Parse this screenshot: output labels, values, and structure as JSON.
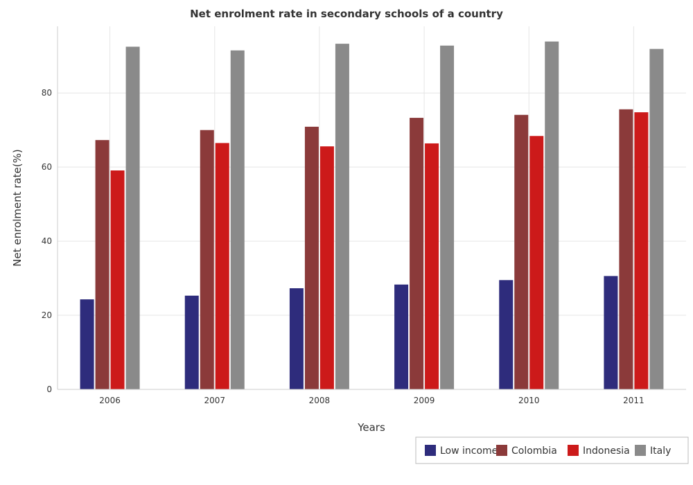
{
  "chart_data": {
    "type": "bar",
    "title": "Net enrolment rate in secondary schools of a country",
    "xlabel": "Years",
    "ylabel": "Net enrolment rate(%)",
    "categories": [
      "2006",
      "2007",
      "2008",
      "2009",
      "2010",
      "2011"
    ],
    "ylim": [
      0,
      98
    ],
    "yticks": [
      0,
      20,
      40,
      60,
      80
    ],
    "grid": true,
    "legend_position": "bottom-right",
    "series": [
      {
        "name": "Low income",
        "color": "#2e2c7c",
        "values": [
          24.3,
          25.3,
          27.3,
          28.3,
          29.5,
          30.6
        ]
      },
      {
        "name": "Colombia",
        "color": "#8b3a3a",
        "values": [
          67.3,
          70.0,
          70.9,
          73.3,
          74.1,
          75.6
        ]
      },
      {
        "name": "Indonesia",
        "color": "#cc1a1a",
        "values": [
          59.1,
          66.5,
          65.6,
          66.4,
          68.4,
          74.8
        ]
      },
      {
        "name": "Italy",
        "color": "#8a8a8a",
        "values": [
          92.5,
          91.5,
          93.3,
          92.8,
          93.9,
          91.9
        ]
      }
    ]
  }
}
